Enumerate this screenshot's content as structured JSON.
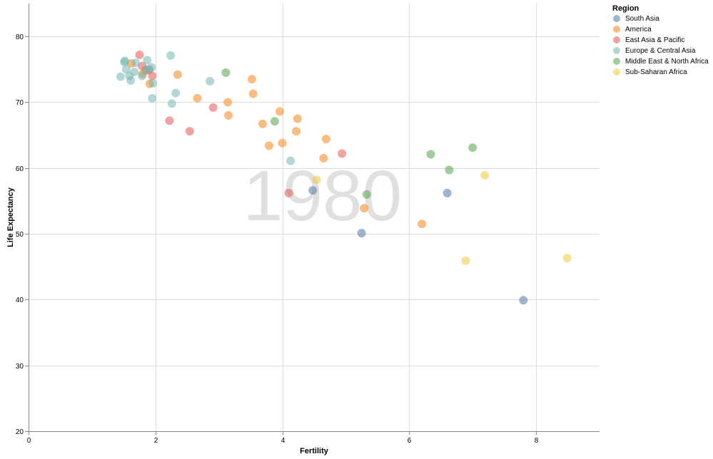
{
  "chart_data": {
    "type": "scatter",
    "title": "",
    "year": "1980",
    "xlabel": "Fertility",
    "ylabel": "Life Expectancy",
    "xlim": [
      0,
      9
    ],
    "ylim": [
      20,
      85
    ],
    "xticks": [
      0,
      2,
      4,
      6,
      8
    ],
    "yticks": [
      20,
      30,
      40,
      50,
      60,
      70,
      80
    ],
    "grid": true,
    "legend": {
      "title": "Region",
      "placement": "top-right",
      "entries": [
        {
          "name": "South Asia",
          "color": "#4c78a8"
        },
        {
          "name": "America",
          "color": "#f58518"
        },
        {
          "name": "East Asia & Pacific",
          "color": "#e45756"
        },
        {
          "name": "Europe & Central Asia",
          "color": "#72b7b2"
        },
        {
          "name": "Middle East & North Africa",
          "color": "#54a24b"
        },
        {
          "name": "Sub-Saharan Africa",
          "color": "#eeca3b"
        }
      ]
    },
    "series": [
      {
        "name": "South Asia",
        "points": [
          [
            7.8,
            39.9
          ],
          [
            6.6,
            56.2
          ],
          [
            5.25,
            50.1
          ],
          [
            4.48,
            56.6
          ]
        ]
      },
      {
        "name": "America",
        "points": [
          [
            1.62,
            75.9
          ],
          [
            1.84,
            74.8
          ],
          [
            1.91,
            72.8
          ],
          [
            1.8,
            74.3
          ],
          [
            2.35,
            74.2
          ],
          [
            2.66,
            70.6
          ],
          [
            3.14,
            70.0
          ],
          [
            3.15,
            68.0
          ],
          [
            3.52,
            73.5
          ],
          [
            3.54,
            71.3
          ],
          [
            3.69,
            66.7
          ],
          [
            3.79,
            63.4
          ],
          [
            3.96,
            68.6
          ],
          [
            4.0,
            63.8
          ],
          [
            4.22,
            65.6
          ],
          [
            4.24,
            67.5
          ],
          [
            4.65,
            61.5
          ],
          [
            4.69,
            64.4
          ],
          [
            5.29,
            53.9
          ],
          [
            6.2,
            51.5
          ]
        ]
      },
      {
        "name": "East Asia & Pacific",
        "points": [
          [
            1.75,
            77.2
          ],
          [
            1.79,
            75.5
          ],
          [
            1.9,
            74.9
          ],
          [
            1.95,
            74.0
          ],
          [
            2.22,
            67.2
          ],
          [
            2.54,
            65.6
          ],
          [
            2.91,
            69.2
          ],
          [
            4.1,
            56.2
          ],
          [
            4.94,
            62.2
          ]
        ]
      },
      {
        "name": "Europe & Central Asia",
        "points": [
          [
            1.45,
            73.9
          ],
          [
            1.51,
            76.1
          ],
          [
            1.52,
            76.3
          ],
          [
            1.54,
            75.0
          ],
          [
            1.59,
            74.0
          ],
          [
            1.61,
            73.3
          ],
          [
            1.67,
            74.6
          ],
          [
            1.69,
            76.0
          ],
          [
            1.79,
            74.0
          ],
          [
            1.85,
            75.0
          ],
          [
            1.87,
            76.4
          ],
          [
            1.9,
            75.0
          ],
          [
            1.94,
            75.3
          ],
          [
            1.96,
            72.9
          ],
          [
            1.95,
            70.6
          ],
          [
            2.24,
            77.1
          ],
          [
            2.26,
            69.8
          ],
          [
            2.32,
            71.4
          ],
          [
            2.86,
            73.2
          ],
          [
            4.13,
            61.1
          ]
        ]
      },
      {
        "name": "Middle East & North Africa",
        "points": [
          [
            3.11,
            74.5
          ],
          [
            3.88,
            67.1
          ],
          [
            5.33,
            56.0
          ],
          [
            6.34,
            62.1
          ],
          [
            6.63,
            59.7
          ],
          [
            7.0,
            63.1
          ]
        ]
      },
      {
        "name": "Sub-Saharan Africa",
        "points": [
          [
            4.54,
            58.2
          ],
          [
            6.89,
            45.9
          ],
          [
            7.19,
            58.9
          ],
          [
            8.49,
            46.3
          ]
        ]
      }
    ]
  }
}
